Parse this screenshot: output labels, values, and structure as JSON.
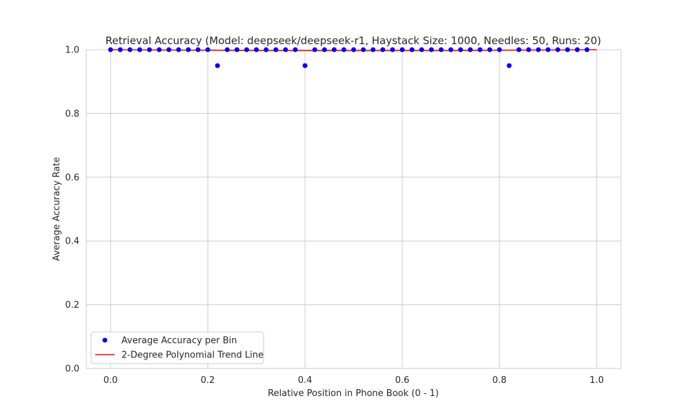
{
  "chart_data": {
    "type": "scatter",
    "title": "Retrieval Accuracy (Model: deepseek/deepseek-r1, Haystack Size: 1000, Needles: 50, Runs: 20)",
    "xlabel": "Relative Position in Phone Book (0 - 1)",
    "ylabel": "Average Accuracy Rate",
    "xlim": [
      -0.05,
      1.05
    ],
    "ylim": [
      0.0,
      1.0
    ],
    "xticks": [
      0.0,
      0.2,
      0.4,
      0.6,
      0.8,
      1.0
    ],
    "xtick_labels": [
      "0.0",
      "0.2",
      "0.4",
      "0.6",
      "0.8",
      "1.0"
    ],
    "yticks": [
      0.0,
      0.2,
      0.4,
      0.6,
      0.8,
      1.0
    ],
    "ytick_labels": [
      "0.0",
      "0.2",
      "0.4",
      "0.6",
      "0.8",
      "1.0"
    ],
    "grid": true,
    "legend_position": "lower-left",
    "series": [
      {
        "name": "Average Accuracy per Bin",
        "kind": "scatter",
        "color": "#0000ff",
        "x": [
          0.0,
          0.02,
          0.04,
          0.06,
          0.08,
          0.1,
          0.12,
          0.14,
          0.16,
          0.18,
          0.2,
          0.22,
          0.24,
          0.26,
          0.28,
          0.3,
          0.32,
          0.34,
          0.36,
          0.38,
          0.4,
          0.42,
          0.44,
          0.46,
          0.48,
          0.5,
          0.52,
          0.54,
          0.56,
          0.58,
          0.6,
          0.62,
          0.64,
          0.66,
          0.68,
          0.7,
          0.72,
          0.74,
          0.76,
          0.78,
          0.8,
          0.82,
          0.84,
          0.86,
          0.88,
          0.9,
          0.92,
          0.94,
          0.96,
          0.98
        ],
        "y": [
          1.0,
          1.0,
          1.0,
          1.0,
          1.0,
          1.0,
          1.0,
          1.0,
          1.0,
          1.0,
          1.0,
          0.95,
          1.0,
          1.0,
          1.0,
          1.0,
          1.0,
          1.0,
          1.0,
          1.0,
          0.95,
          1.0,
          1.0,
          1.0,
          1.0,
          1.0,
          1.0,
          1.0,
          1.0,
          1.0,
          1.0,
          1.0,
          1.0,
          1.0,
          1.0,
          1.0,
          1.0,
          1.0,
          1.0,
          1.0,
          1.0,
          0.95,
          1.0,
          1.0,
          1.0,
          1.0,
          1.0,
          1.0,
          1.0,
          1.0
        ]
      },
      {
        "name": "2-Degree Polynomial Trend Line",
        "kind": "line",
        "color": "#ff0000",
        "x": [
          0.0,
          0.1,
          0.2,
          0.3,
          0.4,
          0.5,
          0.6,
          0.7,
          0.8,
          0.9,
          1.0
        ],
        "y": [
          1.0,
          0.999,
          0.998,
          0.997,
          0.997,
          0.997,
          0.997,
          0.997,
          0.998,
          0.999,
          1.0
        ]
      }
    ]
  }
}
